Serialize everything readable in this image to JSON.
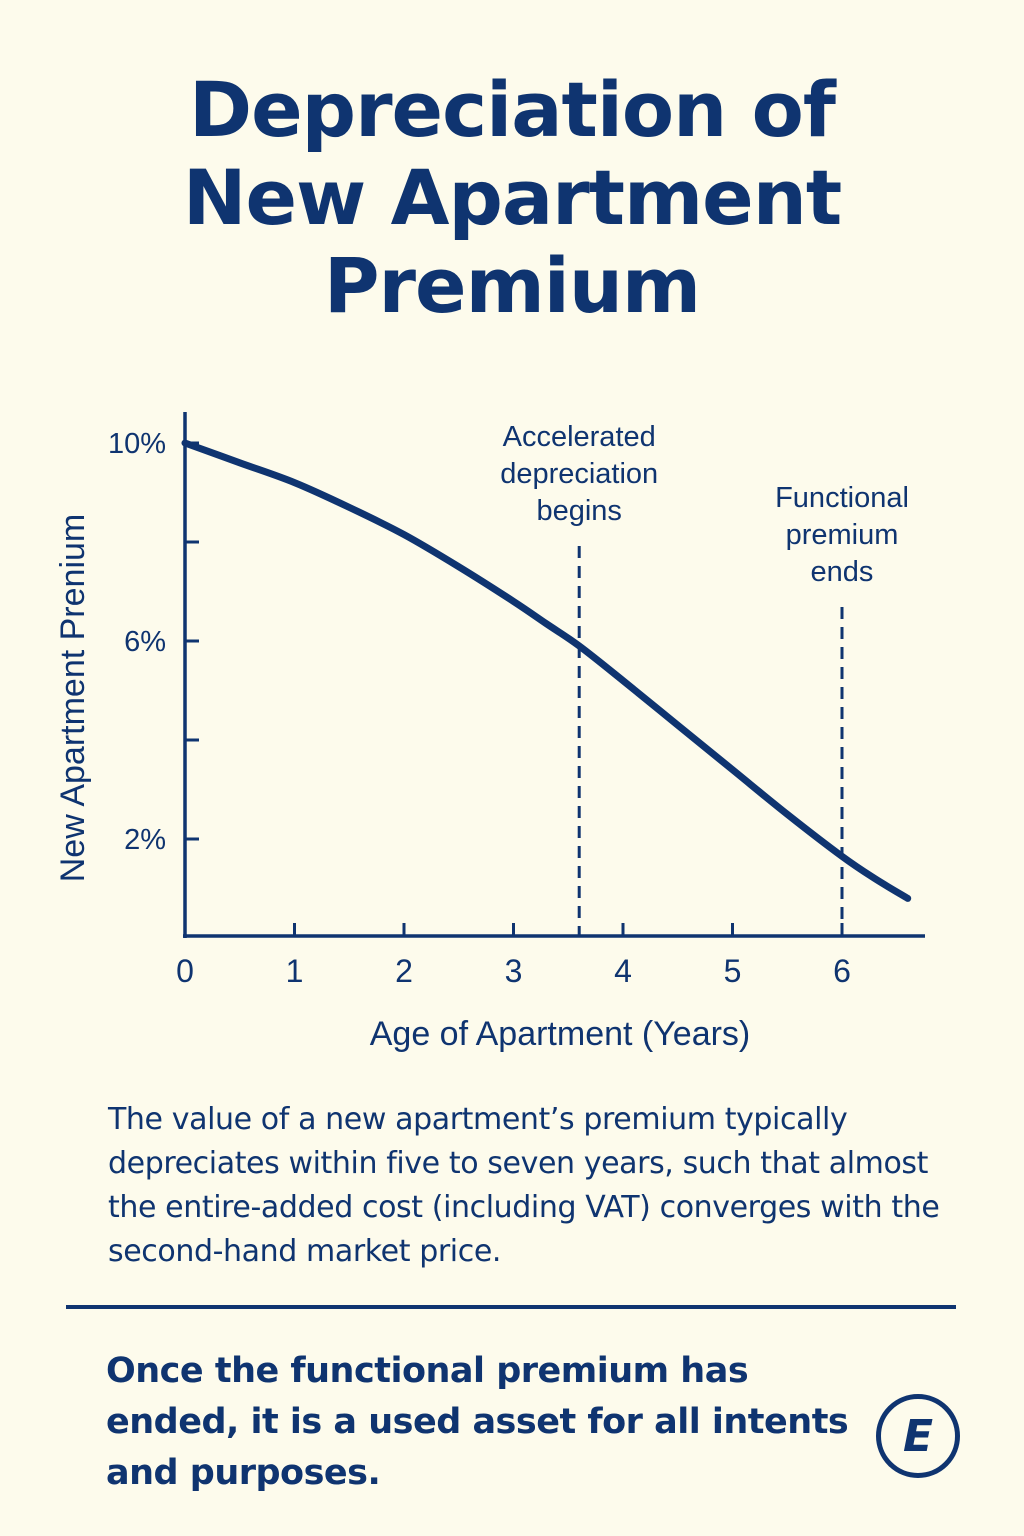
{
  "title": {
    "line1": "Depreciation of",
    "line2": "New Apartment",
    "line3": "Premium"
  },
  "body_text": "The value of a new apartment’s premium typically depreciates within five to seven years, such that almost the entire-added cost (including VAT) converges with the second-hand market price.",
  "conclusion": "Once the functional premium has ended, it is a used asset for all intents and purposes.",
  "logo": {
    "letter": "E"
  },
  "colors": {
    "background": "#fdfbec",
    "primary": "#0f3470"
  },
  "chart_data": {
    "type": "line",
    "title": "",
    "xlabel": "Age of Apartment (Years)",
    "ylabel": "New Apartment Prenium",
    "xlim": [
      0,
      6.8
    ],
    "ylim": [
      0,
      11
    ],
    "x_ticks": [
      0,
      1,
      2,
      3,
      4,
      5,
      6
    ],
    "y_ticks": [
      {
        "value": 10,
        "label": "10%"
      },
      {
        "value": 8,
        "label": ""
      },
      {
        "value": 6,
        "label": "6%"
      },
      {
        "value": 4,
        "label": ""
      },
      {
        "value": 2,
        "label": "2%"
      }
    ],
    "grid": false,
    "series": [
      {
        "name": "",
        "x": [
          0,
          0.5,
          1,
          1.5,
          2,
          2.5,
          3,
          3.3,
          3.6,
          4,
          4.5,
          5,
          5.5,
          6,
          6.3,
          6.6
        ],
        "y": [
          10,
          9.6,
          9.2,
          8.7,
          8.15,
          7.5,
          6.8,
          6.35,
          5.9,
          5.2,
          4.3,
          3.4,
          2.5,
          1.65,
          1.2,
          0.8
        ]
      }
    ],
    "annotations": [
      {
        "x": 3.6,
        "text_lines": [
          "Accelerated",
          "depreciation",
          "begins"
        ]
      },
      {
        "x": 6.0,
        "text_lines": [
          "Functional",
          "premium",
          "ends"
        ]
      }
    ]
  }
}
